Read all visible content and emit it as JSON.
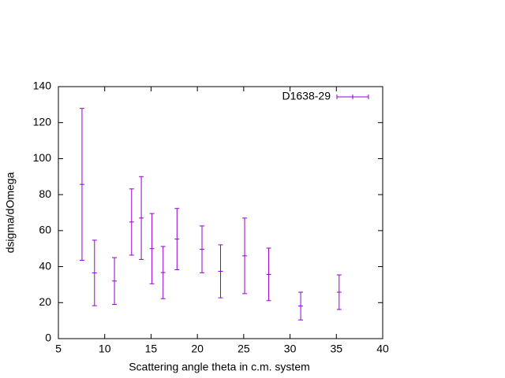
{
  "chart_data": {
    "type": "errorbar",
    "xlabel": "Scattering angle theta in c.m. system",
    "ylabel": "dsigma/dOmega",
    "xlim": [
      5,
      40
    ],
    "xticks": [
      5,
      10,
      15,
      20,
      25,
      30,
      35,
      40
    ],
    "ylim": [
      0,
      140
    ],
    "yticks": [
      0,
      20,
      40,
      60,
      80,
      100,
      120,
      140
    ],
    "legend": "top-right",
    "series": [
      {
        "name": "D1638-29",
        "color": "#9400d3",
        "x": [
          7.55,
          8.9,
          11.05,
          12.9,
          13.95,
          15.1,
          16.3,
          17.8,
          20.5,
          22.5,
          25.1,
          27.7,
          31.15,
          35.3
        ],
        "values": [
          85.7,
          36.5,
          32,
          64.8,
          67,
          50,
          36.7,
          55.3,
          49.6,
          37.4,
          46,
          35.7,
          18.1,
          25.8
        ],
        "errors": [
          42.2,
          18.2,
          13,
          18.4,
          23,
          19.5,
          14.5,
          17,
          13,
          14.7,
          21,
          14.6,
          7.7,
          9.6
        ]
      }
    ]
  }
}
